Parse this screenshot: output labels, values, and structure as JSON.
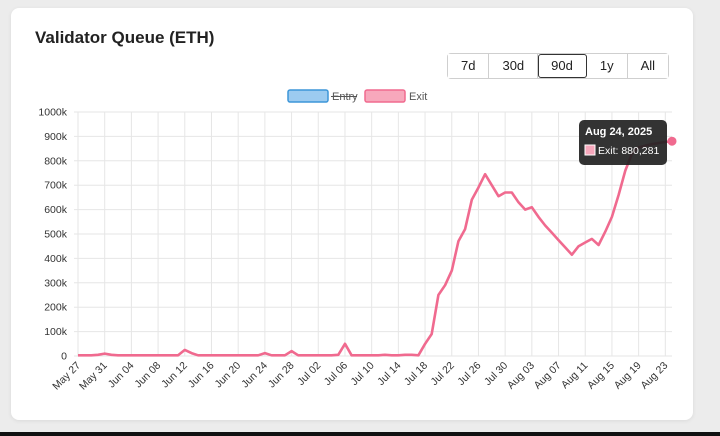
{
  "title": "Validator Queue (ETH)",
  "ranges": [
    "7d",
    "30d",
    "90d",
    "1y",
    "All"
  ],
  "active_range": "90d",
  "colors": {
    "exit": "#f06a8f",
    "exit_fill": "#f7a8bc",
    "entry": "#3d96d8",
    "entry_fill": "#9ccbf0",
    "grid": "#e6e6e6",
    "tooltip_bg": "#222222"
  },
  "tooltip": {
    "title": "Aug 24, 2025",
    "label": "Exit: 880,281"
  },
  "chart_data": {
    "type": "line",
    "legend": [
      {
        "name": "Entry",
        "hidden": true
      },
      {
        "name": "Exit",
        "hidden": false
      }
    ],
    "legend_position": "top",
    "ylim": [
      0,
      1000000
    ],
    "y_ticks": [
      "0",
      "100k",
      "200k",
      "300k",
      "400k",
      "500k",
      "600k",
      "700k",
      "800k",
      "900k",
      "1000k"
    ],
    "x_labels": [
      "May 27",
      "May 31",
      "Jun 04",
      "Jun 08",
      "Jun 12",
      "Jun 16",
      "Jun 20",
      "Jun 24",
      "Jun 28",
      "Jul 02",
      "Jul 06",
      "Jul 10",
      "Jul 14",
      "Jul 18",
      "Jul 22",
      "Jul 26",
      "Jul 30",
      "Aug 03",
      "Aug 07",
      "Aug 11",
      "Aug 15",
      "Aug 19",
      "Aug 23"
    ],
    "grid": true,
    "series": [
      {
        "name": "Exit",
        "x": [
          "May 27",
          "May 28",
          "May 29",
          "May 30",
          "May 31",
          "Jun 01",
          "Jun 02",
          "Jun 03",
          "Jun 04",
          "Jun 05",
          "Jun 06",
          "Jun 07",
          "Jun 08",
          "Jun 09",
          "Jun 10",
          "Jun 11",
          "Jun 12",
          "Jun 13",
          "Jun 14",
          "Jun 15",
          "Jun 16",
          "Jun 17",
          "Jun 18",
          "Jun 19",
          "Jun 20",
          "Jun 21",
          "Jun 22",
          "Jun 23",
          "Jun 24",
          "Jun 25",
          "Jun 26",
          "Jun 27",
          "Jun 28",
          "Jun 29",
          "Jun 30",
          "Jul 01",
          "Jul 02",
          "Jul 03",
          "Jul 04",
          "Jul 05",
          "Jul 06",
          "Jul 07",
          "Jul 08",
          "Jul 09",
          "Jul 10",
          "Jul 11",
          "Jul 12",
          "Jul 13",
          "Jul 14",
          "Jul 15",
          "Jul 16",
          "Jul 17",
          "Jul 18",
          "Jul 19",
          "Jul 20",
          "Jul 21",
          "Jul 22",
          "Jul 23",
          "Jul 24",
          "Jul 25",
          "Jul 26",
          "Jul 27",
          "Jul 28",
          "Jul 29",
          "Jul 30",
          "Jul 31",
          "Aug 01",
          "Aug 02",
          "Aug 03",
          "Aug 04",
          "Aug 05",
          "Aug 06",
          "Aug 07",
          "Aug 08",
          "Aug 09",
          "Aug 10",
          "Aug 11",
          "Aug 12",
          "Aug 13",
          "Aug 14",
          "Aug 15",
          "Aug 16",
          "Aug 17",
          "Aug 18",
          "Aug 19",
          "Aug 20",
          "Aug 21",
          "Aug 22",
          "Aug 23",
          "Aug 24"
        ],
        "values": [
          3000,
          3000,
          3000,
          5000,
          10000,
          5000,
          3000,
          3000,
          3000,
          3000,
          3000,
          3000,
          3000,
          3000,
          3000,
          3000,
          25000,
          12000,
          3000,
          3000,
          3000,
          3000,
          3000,
          3000,
          3000,
          3000,
          3000,
          3000,
          12000,
          3000,
          3000,
          3000,
          20000,
          3000,
          3000,
          3000,
          3000,
          3000,
          3000,
          5000,
          50000,
          3000,
          3000,
          3000,
          3000,
          3000,
          5000,
          3000,
          3000,
          5000,
          5000,
          3000,
          50000,
          90000,
          250000,
          290000,
          350000,
          470000,
          520000,
          640000,
          690000,
          745000,
          700000,
          655000,
          670000,
          670000,
          630000,
          600000,
          610000,
          570000,
          535000,
          505000,
          475000,
          445000,
          415000,
          450000,
          465000,
          480000,
          455000,
          510000,
          570000,
          660000,
          760000,
          830000,
          855000,
          862000,
          868000,
          873000,
          877000,
          880281
        ]
      }
    ]
  }
}
